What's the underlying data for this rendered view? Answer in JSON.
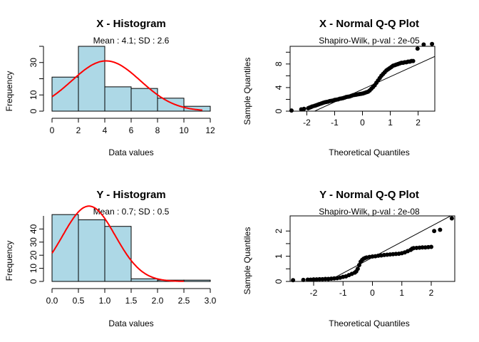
{
  "chart_data": [
    {
      "type": "bar",
      "title": "X - Histogram",
      "subtitle": "Mean : 4.1; SD : 2.6",
      "xlabel": "Data values",
      "ylabel": "Frequency",
      "xlim": [
        0,
        12
      ],
      "ylim": [
        0,
        40
      ],
      "x_ticks": [
        0,
        2,
        4,
        6,
        8,
        10,
        12
      ],
      "y_ticks": [
        0,
        10,
        30
      ],
      "bin_edges": [
        0,
        2,
        4,
        6,
        8,
        10,
        12
      ],
      "values": [
        21,
        40,
        15,
        14,
        8,
        3
      ],
      "bar_color": "#add8e6",
      "curve_color": "#ff0000",
      "curve": {
        "mean": 4.1,
        "sd": 2.6,
        "n": 101,
        "bin_width": 2,
        "from": 0,
        "to": 11.4
      }
    },
    {
      "type": "scatter",
      "title": "X - Normal Q-Q Plot",
      "subtitle": "Shapiro-Wilk, p-val : 2e-05",
      "xlabel": "Theoretical Quantiles",
      "ylabel": "Sample Quantiles",
      "xlim": [
        -2.6,
        2.6
      ],
      "ylim": [
        0,
        11
      ],
      "x_ticks": [
        -2,
        -1,
        0,
        1,
        2
      ],
      "y_ticks": [
        0,
        4,
        8
      ],
      "y_minor_ticks": [
        2,
        6,
        10
      ],
      "reference_line": {
        "intercept": 3.7,
        "slope": 2.15
      },
      "point_color": "#000000",
      "x": [
        -2.55,
        -2.2,
        -2.1,
        -1.95,
        -1.9,
        -1.85,
        -1.8,
        -1.72,
        -1.66,
        -1.6,
        -1.55,
        -1.48,
        -1.42,
        -1.36,
        -1.3,
        -1.24,
        -1.18,
        -1.12,
        -1.06,
        -1.0,
        -0.94,
        -0.88,
        -0.82,
        -0.76,
        -0.7,
        -0.64,
        -0.58,
        -0.52,
        -0.46,
        -0.4,
        -0.34,
        -0.28,
        -0.22,
        -0.16,
        -0.1,
        -0.04,
        0.02,
        0.08,
        0.14,
        0.2,
        0.26,
        0.32,
        0.38,
        0.44,
        0.5,
        0.56,
        0.62,
        0.68,
        0.74,
        0.8,
        0.86,
        0.92,
        0.98,
        1.04,
        1.1,
        1.16,
        1.22,
        1.28,
        1.34,
        1.4,
        1.46,
        1.52,
        1.58,
        1.64,
        1.7,
        1.76,
        1.82,
        1.98,
        2.2,
        2.5
      ],
      "y": [
        0.1,
        0.3,
        0.4,
        0.5,
        0.6,
        0.7,
        0.8,
        0.9,
        1.0,
        1.1,
        1.2,
        1.3,
        1.4,
        1.5,
        1.55,
        1.6,
        1.7,
        1.75,
        1.8,
        1.9,
        1.95,
        2.0,
        2.1,
        2.15,
        2.2,
        2.3,
        2.4,
        2.45,
        2.5,
        2.6,
        2.7,
        2.75,
        2.8,
        2.85,
        2.9,
        2.95,
        3.0,
        3.1,
        3.2,
        3.3,
        3.5,
        3.8,
        4.1,
        4.4,
        4.8,
        5.2,
        5.6,
        6.0,
        6.3,
        6.6,
        6.9,
        7.1,
        7.3,
        7.5,
        7.7,
        7.8,
        7.9,
        8.0,
        8.1,
        8.2,
        8.2,
        8.3,
        8.3,
        8.4,
        8.4,
        8.5,
        8.5,
        10.6,
        11.3,
        11.4
      ]
    },
    {
      "type": "bar",
      "title": "Y - Histogram",
      "subtitle": "Mean : 0.7; SD : 0.5",
      "xlabel": "Data values",
      "ylabel": "Frequency",
      "xlim": [
        0,
        3
      ],
      "ylim": [
        0,
        50
      ],
      "x_ticks": [
        0.0,
        0.5,
        1.0,
        1.5,
        2.0,
        2.5,
        3.0
      ],
      "y_ticks": [
        0,
        10,
        20,
        30,
        40
      ],
      "bin_edges": [
        0,
        0.5,
        1.0,
        1.5,
        2.0,
        2.5,
        3.0
      ],
      "values": [
        51,
        47,
        42,
        2,
        1,
        1
      ],
      "bar_color": "#add8e6",
      "curve_color": "#ff0000",
      "curve": {
        "mean": 0.7,
        "sd": 0.5,
        "n": 144,
        "bin_width": 0.5,
        "from": 0,
        "to": 2.5
      }
    },
    {
      "type": "scatter",
      "title": "Y - Normal Q-Q Plot",
      "subtitle": "Shapiro-Wilk, p-val : 2e-08",
      "xlabel": "Theoretical Quantiles",
      "ylabel": "Sample Quantiles",
      "xlim": [
        -2.8,
        2.8
      ],
      "ylim": [
        0,
        2.6
      ],
      "x_ticks": [
        -2,
        -1,
        0,
        1,
        2
      ],
      "y_ticks": [
        0.0,
        1.0,
        2.0
      ],
      "y_minor_ticks": [
        0.5,
        1.5
      ],
      "reference_line": {
        "intercept": 0.95,
        "slope": 0.62
      },
      "point_color": "#000000",
      "x": [
        -2.7,
        -2.35,
        -2.2,
        -2.1,
        -2.0,
        -1.9,
        -1.8,
        -1.7,
        -1.6,
        -1.5,
        -1.4,
        -1.3,
        -1.2,
        -1.1,
        -1.0,
        -0.9,
        -0.8,
        -0.7,
        -0.6,
        -0.55,
        -0.5,
        -0.45,
        -0.4,
        -0.35,
        -0.3,
        -0.25,
        -0.2,
        -0.1,
        0.0,
        0.1,
        0.2,
        0.3,
        0.4,
        0.5,
        0.6,
        0.7,
        0.8,
        0.9,
        1.0,
        1.1,
        1.2,
        1.3,
        1.35,
        1.4,
        1.5,
        1.6,
        1.7,
        1.8,
        1.9,
        2.0,
        2.1,
        2.3,
        2.7
      ],
      "y": [
        0.05,
        0.06,
        0.07,
        0.07,
        0.08,
        0.08,
        0.09,
        0.09,
        0.1,
        0.1,
        0.11,
        0.12,
        0.13,
        0.15,
        0.18,
        0.2,
        0.25,
        0.3,
        0.35,
        0.4,
        0.5,
        0.65,
        0.78,
        0.85,
        0.9,
        0.93,
        0.95,
        0.97,
        0.99,
        1.0,
        1.02,
        1.03,
        1.05,
        1.06,
        1.07,
        1.08,
        1.09,
        1.1,
        1.12,
        1.15,
        1.2,
        1.25,
        1.3,
        1.32,
        1.33,
        1.34,
        1.35,
        1.35,
        1.36,
        1.37,
        2.0,
        2.05,
        2.5
      ]
    }
  ]
}
